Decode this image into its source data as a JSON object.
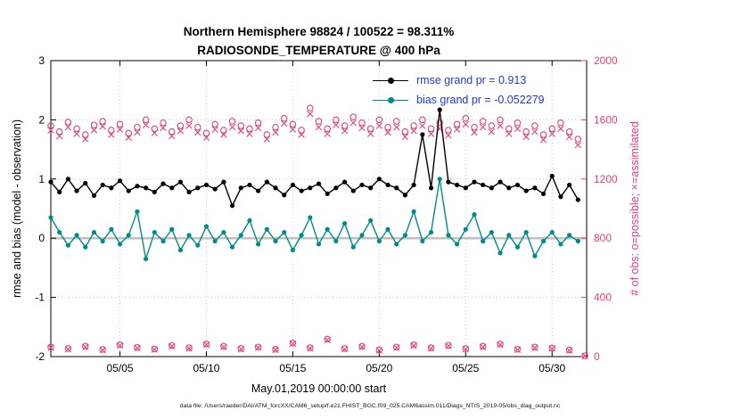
{
  "figure": {
    "title": "Northern Hemisphere 98824 / 100522 = 98.311%",
    "subtitle": "RADIOSONDE_TEMPERATURE @ 400 hPa",
    "xlabel": "May.01,2019 00:00:00 start",
    "ylabel_left": "rmse and bias (model - observation)",
    "ylabel_right": "# of obs: o=possible; ×=assimilated",
    "datafile": "data file: /Users/raeder/DAI/ATM_forcXX/CAM6_setup/f.e21.FHIST_BGC.f09_025.CAM6assim.011/Diags_NTrS_2019-05/obs_diag_output.nc"
  },
  "legend": {
    "text_color": "#2038d8",
    "entries": [
      {
        "label": "rmse grand pr = 0.913",
        "color": "#000000"
      },
      {
        "label": "bias grand pr = -0.052279",
        "color": "#008b8b"
      }
    ]
  },
  "chart_data": {
    "type": "line",
    "title": "Northern Hemisphere 98824 / 100522 = 98.311%",
    "subtitle": "RADIOSONDE_TEMPERATURE @ 400 hPa",
    "xlabel": "May.01,2019 00:00:00 start",
    "ylabel_left": "rmse and bias (model - observation)",
    "ylabel_right": "# of obs: o=possible; ×=assimilated",
    "grand_rmse": 0.913,
    "grand_bias": -0.052279,
    "colors": {
      "grid": "#c7c7c7",
      "zero_line": "#c0c0c0"
    },
    "axes": {
      "x": {
        "range": [
          1,
          32
        ],
        "ticks": [
          5,
          10,
          15,
          20,
          25,
          30
        ],
        "labels": [
          "05/05",
          "05/10",
          "05/15",
          "05/20",
          "05/25",
          "05/30"
        ]
      },
      "y_left": {
        "range": [
          -2,
          3
        ],
        "ticks": [
          -2,
          -1,
          0,
          1,
          2,
          3
        ],
        "labels": [
          "-2",
          "-1",
          "0",
          "1",
          "2",
          "3"
        ]
      },
      "y_right": {
        "range": [
          0,
          2000
        ],
        "ticks": [
          0,
          400,
          800,
          1200,
          1600,
          2000
        ],
        "labels": [
          "0",
          "400",
          "800",
          "1200",
          "1600",
          "2000"
        ]
      }
    },
    "x_days": [
      1,
      1.5,
      2,
      2.5,
      3,
      3.5,
      4,
      4.5,
      5,
      5.5,
      6,
      6.5,
      7,
      7.5,
      8,
      8.5,
      9,
      9.5,
      10,
      10.5,
      11,
      11.5,
      12,
      12.5,
      13,
      13.5,
      14,
      14.5,
      15,
      15.5,
      16,
      16.5,
      17,
      17.5,
      18,
      18.5,
      19,
      19.5,
      20,
      20.5,
      21,
      21.5,
      22,
      22.5,
      23,
      23.5,
      24,
      24.5,
      25,
      25.5,
      26,
      26.5,
      27,
      27.5,
      28,
      28.5,
      29,
      29.5,
      30,
      30.5,
      31,
      31.5
    ],
    "series": [
      {
        "name": "rmse",
        "color": "#000000",
        "values": [
          0.95,
          0.78,
          1.0,
          0.8,
          0.93,
          0.72,
          0.9,
          0.85,
          0.97,
          0.8,
          0.88,
          0.85,
          0.78,
          0.92,
          0.85,
          0.95,
          0.78,
          0.85,
          0.9,
          0.83,
          0.95,
          0.55,
          0.85,
          0.9,
          0.8,
          0.95,
          0.85,
          0.73,
          0.9,
          0.8,
          0.85,
          0.92,
          0.75,
          0.85,
          0.95,
          0.8,
          0.9,
          0.85,
          1.0,
          0.9,
          0.85,
          0.73,
          0.9,
          1.75,
          0.85,
          2.17,
          0.95,
          0.9,
          0.85,
          0.95,
          0.9,
          0.85,
          0.95,
          0.85,
          0.9,
          0.8,
          0.85,
          0.75,
          1.05,
          0.7,
          0.9,
          0.65
        ]
      },
      {
        "name": "bias",
        "color": "#008b8b",
        "values": [
          0.35,
          0.1,
          -0.12,
          0.05,
          -0.15,
          0.1,
          -0.05,
          0.15,
          -0.1,
          0.05,
          0.45,
          -0.35,
          0.1,
          -0.05,
          0.15,
          -0.2,
          0.05,
          -0.12,
          0.2,
          -0.05,
          0.1,
          -0.15,
          0.05,
          0.3,
          -0.1,
          0.15,
          -0.05,
          0.1,
          -0.2,
          0.05,
          0.35,
          -0.1,
          0.15,
          -0.05,
          0.25,
          -0.15,
          0.05,
          0.3,
          -0.05,
          0.15,
          -0.1,
          0.05,
          0.45,
          -0.05,
          0.1,
          1.0,
          0.05,
          -0.1,
          0.15,
          0.4,
          -0.05,
          0.1,
          -0.25,
          0.05,
          -0.15,
          0.1,
          -0.3,
          -0.05,
          0.1,
          -0.1,
          0.05,
          -0.05
        ]
      }
    ],
    "obs_counts": {
      "color": "#e0417e",
      "high": {
        "days": [
          1,
          1.5,
          2,
          2.5,
          3,
          3.5,
          4,
          4.5,
          5,
          5.5,
          6,
          6.5,
          7,
          7.5,
          8,
          8.5,
          9,
          9.5,
          10,
          10.5,
          11,
          11.5,
          12,
          12.5,
          13,
          13.5,
          14,
          14.5,
          15,
          15.5,
          16,
          16.5,
          17,
          17.5,
          18,
          18.5,
          19,
          19.5,
          20,
          20.5,
          21,
          21.5,
          22,
          22.5,
          23,
          23.5,
          24,
          24.5,
          25,
          25.5,
          26,
          26.5,
          27,
          27.5,
          28,
          28.5,
          29,
          29.5,
          30,
          30.5,
          31,
          31.5
        ],
        "possible": [
          1560,
          1520,
          1585,
          1540,
          1500,
          1565,
          1590,
          1530,
          1570,
          1510,
          1550,
          1600,
          1540,
          1580,
          1520,
          1560,
          1600,
          1550,
          1510,
          1570,
          1530,
          1590,
          1560,
          1540,
          1580,
          1500,
          1550,
          1610,
          1570,
          1530,
          1680,
          1590,
          1540,
          1600,
          1560,
          1620,
          1580,
          1540,
          1600,
          1550,
          1590,
          1520,
          1560,
          1600,
          1540,
          1580,
          1530,
          1570,
          1610,
          1550,
          1590,
          1560,
          1600,
          1540,
          1580,
          1520,
          1560,
          1500,
          1540,
          1580,
          1520,
          1470
        ],
        "assimilated": [
          1530,
          1490,
          1550,
          1505,
          1470,
          1530,
          1555,
          1500,
          1535,
          1480,
          1515,
          1565,
          1510,
          1545,
          1490,
          1525,
          1560,
          1515,
          1480,
          1535,
          1500,
          1550,
          1525,
          1505,
          1545,
          1470,
          1515,
          1575,
          1535,
          1500,
          1640,
          1550,
          1505,
          1565,
          1525,
          1580,
          1545,
          1505,
          1560,
          1515,
          1550,
          1485,
          1525,
          1560,
          1505,
          1540,
          1495,
          1535,
          1570,
          1515,
          1550,
          1520,
          1560,
          1505,
          1540,
          1485,
          1520,
          1465,
          1505,
          1540,
          1485,
          1430
        ]
      },
      "low": {
        "days": [
          1,
          2,
          3,
          4,
          5,
          6,
          7,
          8,
          9,
          10,
          11,
          12,
          13,
          14,
          15,
          16,
          17,
          18,
          19,
          20,
          21,
          22,
          23,
          24,
          25,
          26,
          27,
          28,
          29,
          30,
          31,
          31.9
        ],
        "possible": [
          65,
          55,
          70,
          48,
          80,
          62,
          52,
          75,
          60,
          85,
          70,
          55,
          65,
          50,
          92,
          60,
          118,
          55,
          70,
          46,
          65,
          80,
          60,
          76,
          55,
          70,
          85,
          50,
          65,
          58,
          45,
          5
        ],
        "assimilated": [
          60,
          50,
          65,
          44,
          75,
          58,
          48,
          70,
          55,
          80,
          65,
          50,
          60,
          46,
          87,
          55,
          112,
          50,
          65,
          42,
          60,
          75,
          55,
          72,
          50,
          65,
          80,
          46,
          60,
          54,
          41,
          4
        ]
      }
    }
  }
}
